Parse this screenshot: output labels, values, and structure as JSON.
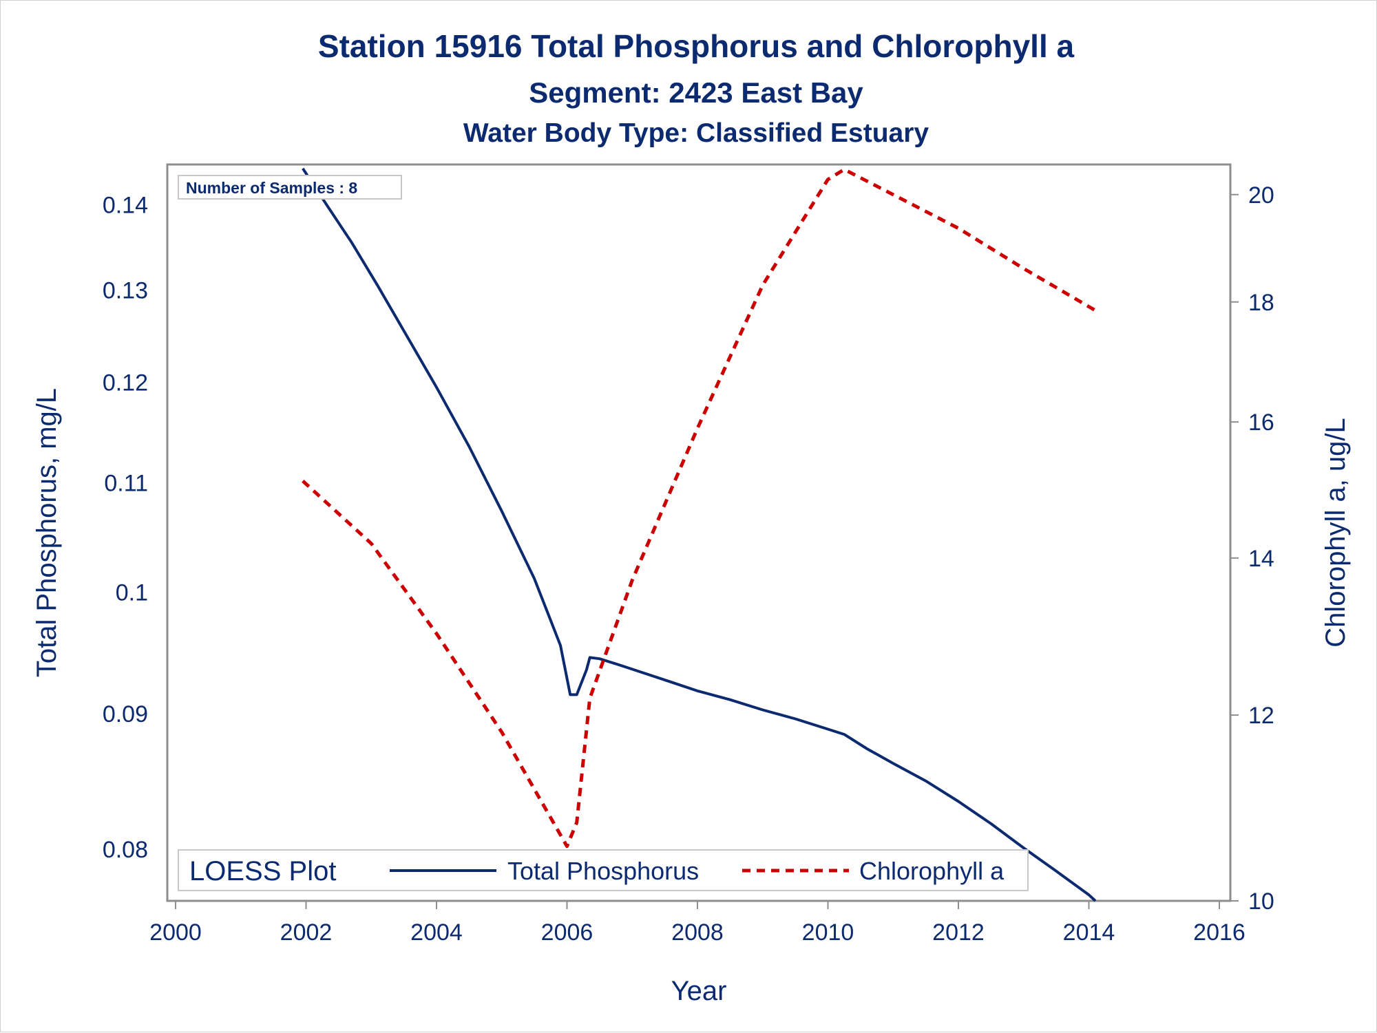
{
  "chart_data": {
    "type": "line",
    "title": "Station 15916   Total Phosphorus and Chlorophyll a",
    "subtitle": "Segment: 2423  East Bay",
    "subtitle2": "Water Body Type: Classified Estuary",
    "xlabel": "Year",
    "ylabel_left": "Total Phosphorus, mg/L",
    "ylabel_right": "Chlorophyll a, ug/L",
    "y_left_scale": "log",
    "y_right_scale": "log",
    "x_ticks": [
      2000,
      2002,
      2004,
      2006,
      2008,
      2010,
      2012,
      2014,
      2016
    ],
    "y_left_ticks": [
      "0.08",
      "0.09",
      "0.1",
      "0.11",
      "0.12",
      "0.13",
      "0.14"
    ],
    "y_right_ticks": [
      "10",
      "12",
      "14",
      "16",
      "18",
      "20"
    ],
    "xlim": [
      2000,
      2016
    ],
    "ylim_left": [
      0.0765,
      0.145
    ],
    "ylim_right": [
      10,
      20.6
    ],
    "inset_label": "Number of Samples : 8",
    "legend": {
      "title": "LOESS Plot",
      "position": "bottom-left inside",
      "entries": [
        "Total Phosphorus",
        "Chlorophyll a"
      ]
    },
    "series": [
      {
        "name": "Total Phosphorus",
        "axis": "left",
        "color": "#0b2a6f",
        "style": "solid",
        "x": [
          2001.95,
          2002.3,
          2002.7,
          2003.1,
          2003.5,
          2004.0,
          2004.5,
          2005.0,
          2005.5,
          2005.9,
          2006.05,
          2006.15,
          2006.3,
          2006.35,
          2006.5,
          2006.8,
          2007.2,
          2007.6,
          2008.0,
          2008.5,
          2009.0,
          2009.5,
          2010.0,
          2010.25,
          2010.6,
          2011.0,
          2011.5,
          2012.0,
          2012.5,
          2013.0,
          2013.5,
          2014.0,
          2014.1
        ],
        "y": [
          0.1445,
          0.1402,
          0.1355,
          0.1305,
          0.1255,
          0.1195,
          0.1135,
          0.1073,
          0.1012,
          0.0955,
          0.0915,
          0.0915,
          0.0935,
          0.0945,
          0.0944,
          0.0939,
          0.0932,
          0.0925,
          0.0918,
          0.0911,
          0.0903,
          0.0896,
          0.0888,
          0.0884,
          0.0873,
          0.0862,
          0.0849,
          0.0834,
          0.0818,
          0.0801,
          0.0785,
          0.0769,
          0.0765
        ]
      },
      {
        "name": "Chlorophyll a",
        "axis": "right",
        "color": "#cc0000",
        "style": "dashed",
        "x": [
          2001.95,
          2003.0,
          2004.0,
          2005.0,
          2006.0,
          2006.15,
          2006.35,
          2007.0,
          2008.0,
          2009.0,
          2010.0,
          2010.25,
          2011.0,
          2012.0,
          2013.0,
          2014.1
        ],
        "y": [
          15.1,
          14.2,
          13.0,
          11.8,
          10.55,
          10.8,
          12.2,
          13.7,
          15.9,
          18.3,
          20.3,
          20.5,
          20.0,
          19.35,
          18.6,
          17.85
        ]
      }
    ]
  }
}
